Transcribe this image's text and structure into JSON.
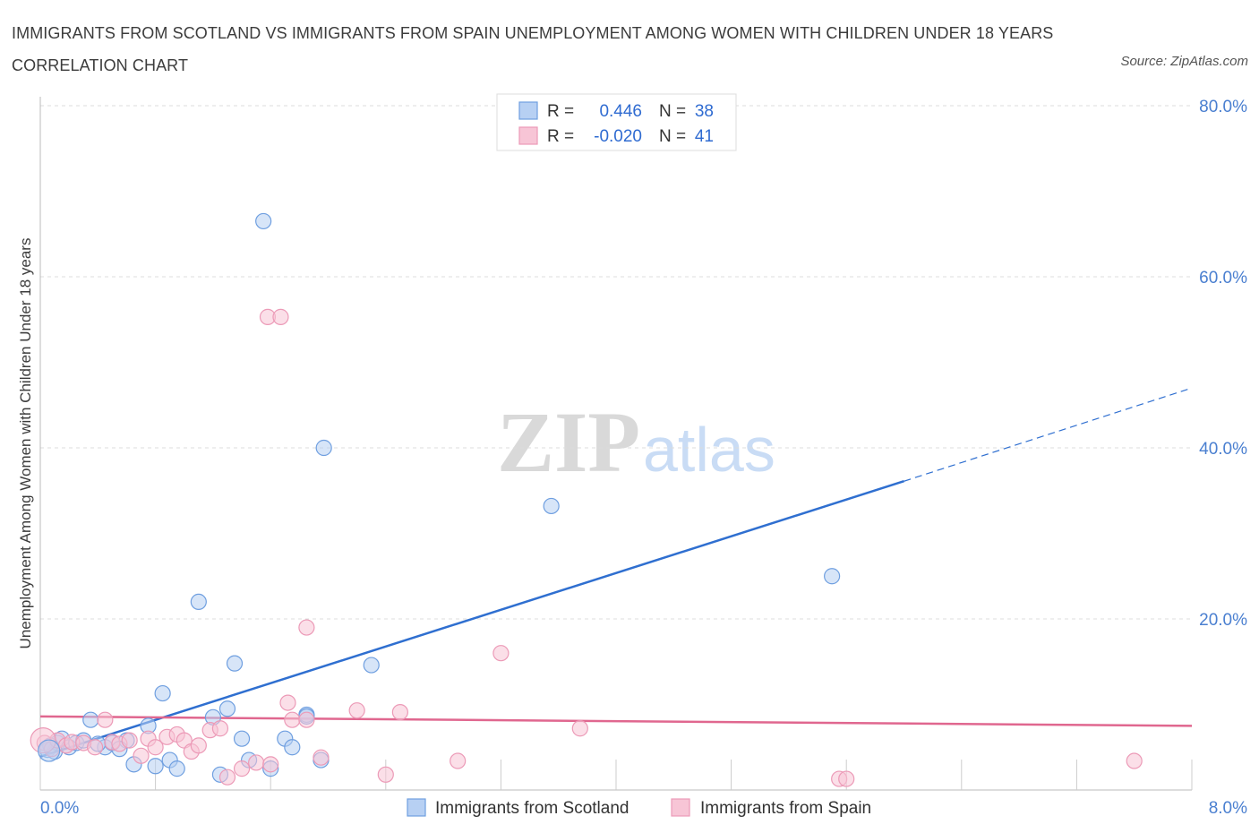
{
  "title": "IMMIGRANTS FROM SCOTLAND VS IMMIGRANTS FROM SPAIN UNEMPLOYMENT AMONG WOMEN WITH CHILDREN UNDER 18 YEARS CORRELATION CHART",
  "source": "Source: ZipAtlas.com",
  "watermark": {
    "zip": "ZIP",
    "atlas": "atlas"
  },
  "legend_top": [
    {
      "r_label": "R =",
      "r_value": "0.446",
      "n_label": "N =",
      "n_value": "38"
    },
    {
      "r_label": "R =",
      "r_value": "-0.020",
      "n_label": "N =",
      "n_value": "41"
    }
  ],
  "chart_data": {
    "type": "scatter",
    "xlabel": "",
    "ylabel": "Unemployment Among Women with Children Under 18 years",
    "xlim": [
      0,
      8
    ],
    "ylim": [
      0,
      80
    ],
    "x_tick_labels": [
      "0.0%",
      "8.0%"
    ],
    "y_ticks": [
      20,
      40,
      60,
      80
    ],
    "y_tick_labels": [
      "20.0%",
      "40.0%",
      "60.0%",
      "80.0%"
    ],
    "grid": true,
    "legend_placement": "bottom-center",
    "series": [
      {
        "name": "Immigrants from Scotland",
        "color": "#6f9fe0",
        "fill": "#b7d0f3",
        "trend": {
          "x": [
            0,
            6.0
          ],
          "y": [
            3.9,
            36.1
          ],
          "dashed_to": [
            8.0,
            47.0
          ],
          "color": "#2f6fd0"
        },
        "points": [
          [
            0.05,
            4.7
          ],
          [
            0.1,
            4.5
          ],
          [
            0.12,
            5.5
          ],
          [
            0.15,
            6.0
          ],
          [
            0.2,
            5.0
          ],
          [
            0.25,
            5.5
          ],
          [
            0.3,
            5.8
          ],
          [
            0.35,
            8.2
          ],
          [
            0.45,
            5.0
          ],
          [
            0.5,
            5.5
          ],
          [
            0.6,
            5.8
          ],
          [
            0.65,
            3.0
          ],
          [
            0.75,
            7.5
          ],
          [
            0.8,
            2.8
          ],
          [
            0.85,
            11.3
          ],
          [
            0.9,
            3.5
          ],
          [
            0.95,
            2.5
          ],
          [
            1.1,
            22.0
          ],
          [
            1.2,
            8.5
          ],
          [
            1.25,
            1.8
          ],
          [
            1.3,
            9.5
          ],
          [
            1.35,
            14.8
          ],
          [
            1.4,
            6.0
          ],
          [
            1.45,
            3.5
          ],
          [
            1.6,
            2.5
          ],
          [
            1.55,
            66.5
          ],
          [
            1.7,
            6.0
          ],
          [
            1.75,
            5.0
          ],
          [
            1.85,
            8.8
          ],
          [
            1.95,
            3.5
          ],
          [
            1.97,
            40.0
          ],
          [
            2.3,
            14.6
          ],
          [
            3.55,
            33.2
          ],
          [
            5.5,
            25.0
          ],
          [
            0.07,
            5.2
          ],
          [
            0.4,
            5.4
          ],
          [
            0.55,
            4.8
          ],
          [
            1.85,
            8.6
          ]
        ]
      },
      {
        "name": "Immigrants from Spain",
        "color": "#ec9ab7",
        "fill": "#f7c5d6",
        "trend": {
          "x": [
            0,
            8.0
          ],
          "y": [
            8.6,
            7.5
          ],
          "color": "#e0678f"
        },
        "points": [
          [
            0.03,
            5.5
          ],
          [
            0.08,
            4.8
          ],
          [
            0.12,
            5.8
          ],
          [
            0.18,
            5.2
          ],
          [
            0.22,
            5.6
          ],
          [
            0.3,
            5.5
          ],
          [
            0.38,
            5.0
          ],
          [
            0.45,
            8.2
          ],
          [
            0.5,
            5.6
          ],
          [
            0.55,
            5.4
          ],
          [
            0.62,
            5.8
          ],
          [
            0.7,
            4.0
          ],
          [
            0.75,
            6.0
          ],
          [
            0.8,
            5.0
          ],
          [
            0.88,
            6.2
          ],
          [
            0.95,
            6.5
          ],
          [
            1.0,
            5.8
          ],
          [
            1.05,
            4.5
          ],
          [
            1.1,
            5.2
          ],
          [
            1.18,
            7.0
          ],
          [
            1.25,
            7.2
          ],
          [
            1.3,
            1.5
          ],
          [
            1.4,
            2.5
          ],
          [
            1.5,
            3.2
          ],
          [
            1.6,
            3.0
          ],
          [
            1.58,
            55.3
          ],
          [
            1.67,
            55.3
          ],
          [
            1.72,
            10.2
          ],
          [
            1.75,
            8.2
          ],
          [
            1.85,
            8.2
          ],
          [
            1.85,
            19.0
          ],
          [
            1.95,
            3.8
          ],
          [
            2.2,
            9.3
          ],
          [
            2.4,
            1.8
          ],
          [
            2.5,
            9.1
          ],
          [
            2.9,
            3.4
          ],
          [
            3.2,
            16.0
          ],
          [
            3.75,
            7.2
          ],
          [
            5.55,
            1.3
          ],
          [
            5.6,
            1.3
          ],
          [
            7.6,
            3.4
          ]
        ]
      }
    ]
  }
}
